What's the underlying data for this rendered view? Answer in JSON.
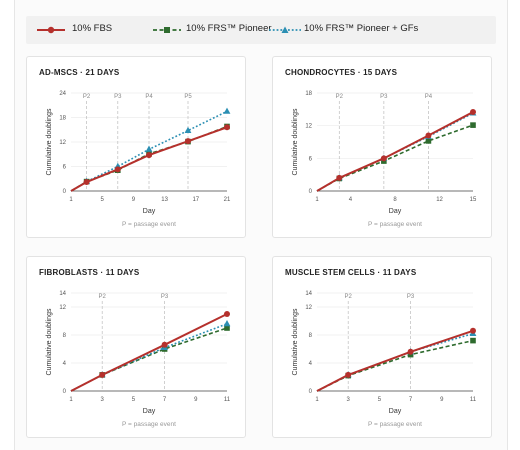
{
  "colors": {
    "fbs": "#b5302c",
    "pioneer": "#2e6b2e",
    "gfs": "#2b8fb3"
  },
  "legend": [
    {
      "label": "10% FBS",
      "series": "fbs",
      "style": "solid",
      "marker": "circle"
    },
    {
      "label": "10% FRS™ Pioneer",
      "series": "pioneer",
      "style": "dashed",
      "marker": "square"
    },
    {
      "label": "10% FRS™ Pioneer + GFs",
      "series": "gfs",
      "style": "dotted",
      "marker": "triangle"
    }
  ],
  "chart_data": [
    {
      "type": "line",
      "title": "AD-MSCS · 21 DAYS",
      "xlabel": "Day",
      "ylabel": "Cumulative doublings",
      "note": "P = passage event",
      "xlim": [
        1,
        21
      ],
      "ylim": [
        0,
        24
      ],
      "xticks": [
        1,
        5,
        9,
        13,
        17,
        21
      ],
      "yticks": [
        0,
        6,
        12,
        18,
        24
      ],
      "passages": [
        {
          "x": 3,
          "label": "P2"
        },
        {
          "x": 7,
          "label": "P3"
        },
        {
          "x": 11,
          "label": "P4"
        },
        {
          "x": 16,
          "label": "P5"
        }
      ],
      "x": [
        1,
        3,
        7,
        11,
        16,
        21
      ],
      "series": [
        {
          "name": "10% FBS",
          "key": "fbs",
          "values": [
            0,
            2.2,
            5.3,
            8.8,
            12.2,
            15.6
          ]
        },
        {
          "name": "10% FRS™ Pioneer",
          "key": "pioneer",
          "values": [
            0,
            2.3,
            5.1,
            9.1,
            12.1,
            15.8
          ]
        },
        {
          "name": "10% FRS™ Pioneer + GFs",
          "key": "gfs",
          "values": [
            0,
            2.3,
            6.0,
            10.2,
            14.8,
            19.5
          ]
        }
      ]
    },
    {
      "type": "line",
      "title": "CHONDROCYTES · 15 DAYS",
      "xlabel": "Day",
      "ylabel": "Cumulative doublings",
      "note": "P = passage event",
      "xlim": [
        1,
        15
      ],
      "ylim": [
        0,
        18
      ],
      "xticks": [
        1,
        4,
        8,
        12,
        15
      ],
      "yticks": [
        0,
        6,
        12,
        18
      ],
      "passages": [
        {
          "x": 3,
          "label": "P2"
        },
        {
          "x": 7,
          "label": "P3"
        },
        {
          "x": 11,
          "label": "P4"
        }
      ],
      "x": [
        1,
        3,
        7,
        11,
        15
      ],
      "series": [
        {
          "name": "10% FBS",
          "key": "fbs",
          "values": [
            0,
            2.4,
            6.0,
            10.2,
            14.5
          ]
        },
        {
          "name": "10% FRS™ Pioneer",
          "key": "pioneer",
          "values": [
            0,
            2.3,
            5.5,
            9.2,
            12.1
          ]
        },
        {
          "name": "10% FRS™ Pioneer + GFs",
          "key": "gfs",
          "values": [
            0,
            2.4,
            6.0,
            10.0,
            14.3
          ]
        }
      ]
    },
    {
      "type": "line",
      "title": "FIBROBLASTS · 11 DAYS",
      "xlabel": "Day",
      "ylabel": "Cumulative doublings",
      "note": "P = passage event",
      "xlim": [
        1,
        11
      ],
      "ylim": [
        0,
        14
      ],
      "xticks": [
        1,
        3,
        5,
        7,
        9,
        11
      ],
      "yticks": [
        0,
        4,
        8,
        12,
        14
      ],
      "passages": [
        {
          "x": 3,
          "label": "P2"
        },
        {
          "x": 7,
          "label": "P3"
        }
      ],
      "x": [
        1,
        3,
        7,
        11
      ],
      "series": [
        {
          "name": "10% FBS",
          "key": "fbs",
          "values": [
            0,
            2.3,
            6.6,
            11.0
          ]
        },
        {
          "name": "10% FRS™ Pioneer",
          "key": "pioneer",
          "values": [
            0,
            2.3,
            6.0,
            9.0
          ]
        },
        {
          "name": "10% FRS™ Pioneer + GFs",
          "key": "gfs",
          "values": [
            0,
            2.3,
            6.2,
            9.6
          ]
        }
      ]
    },
    {
      "type": "line",
      "title": "MUSCLE STEM CELLS · 11 DAYS",
      "xlabel": "Day",
      "ylabel": "Cumulative doublings",
      "note": "P = passage event",
      "xlim": [
        1,
        11
      ],
      "ylim": [
        0,
        14
      ],
      "xticks": [
        1,
        3,
        5,
        7,
        9,
        11
      ],
      "yticks": [
        0,
        4,
        8,
        12,
        14
      ],
      "passages": [
        {
          "x": 3,
          "label": "P2"
        },
        {
          "x": 7,
          "label": "P3"
        }
      ],
      "x": [
        1,
        3,
        7,
        11
      ],
      "series": [
        {
          "name": "10% FBS",
          "key": "fbs",
          "values": [
            0,
            2.3,
            5.6,
            8.6
          ]
        },
        {
          "name": "10% FRS™ Pioneer",
          "key": "pioneer",
          "values": [
            0,
            2.2,
            5.2,
            7.2
          ]
        },
        {
          "name": "10% FRS™ Pioneer + GFs",
          "key": "gfs",
          "values": [
            0,
            2.3,
            5.6,
            8.2
          ]
        }
      ]
    }
  ]
}
